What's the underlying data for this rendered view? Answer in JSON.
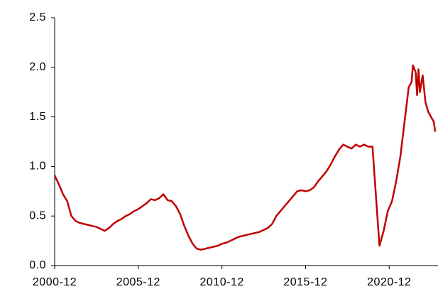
{
  "chart_data": {
    "type": "line",
    "x": [
      "2000-12",
      "2001-03",
      "2001-06",
      "2001-09",
      "2001-12",
      "2002-03",
      "2002-06",
      "2002-09",
      "2002-12",
      "2003-03",
      "2003-06",
      "2003-09",
      "2003-12",
      "2004-03",
      "2004-06",
      "2004-09",
      "2004-12",
      "2005-03",
      "2005-06",
      "2005-09",
      "2005-12",
      "2006-03",
      "2006-06",
      "2006-09",
      "2006-12",
      "2007-03",
      "2007-06",
      "2007-09",
      "2007-12",
      "2008-03",
      "2008-06",
      "2008-09",
      "2008-12",
      "2009-03",
      "2009-06",
      "2009-09",
      "2009-12",
      "2010-03",
      "2010-06",
      "2010-09",
      "2010-12",
      "2011-03",
      "2011-06",
      "2011-09",
      "2011-12",
      "2012-03",
      "2012-06",
      "2012-09",
      "2012-12",
      "2013-03",
      "2013-06",
      "2013-09",
      "2013-12",
      "2014-03",
      "2014-06",
      "2014-09",
      "2014-12",
      "2015-03",
      "2015-06",
      "2015-09",
      "2015-12",
      "2016-03",
      "2016-06",
      "2016-09",
      "2016-12",
      "2017-03",
      "2017-06",
      "2017-09",
      "2017-12",
      "2018-03",
      "2018-06",
      "2018-09",
      "2018-12",
      "2019-03",
      "2019-06",
      "2019-09",
      "2019-12",
      "2020-03",
      "2020-05",
      "2020-08",
      "2020-11",
      "2021-02",
      "2021-05",
      "2021-08",
      "2021-11",
      "2022-02",
      "2022-04",
      "2022-05",
      "2022-07",
      "2022-08",
      "2022-09",
      "2022-10",
      "2022-12",
      "2023-02",
      "2023-04",
      "2023-06",
      "2023-08",
      "2023-09"
    ],
    "series": [
      {
        "color": "#c00000",
        "values": [
          0.91,
          0.82,
          0.72,
          0.65,
          0.5,
          0.45,
          0.43,
          0.42,
          0.41,
          0.4,
          0.39,
          0.37,
          0.35,
          0.38,
          0.42,
          0.45,
          0.47,
          0.5,
          0.52,
          0.55,
          0.57,
          0.6,
          0.63,
          0.67,
          0.66,
          0.68,
          0.72,
          0.66,
          0.65,
          0.6,
          0.52,
          0.4,
          0.3,
          0.22,
          0.17,
          0.16,
          0.17,
          0.18,
          0.19,
          0.2,
          0.22,
          0.23,
          0.25,
          0.27,
          0.29,
          0.3,
          0.31,
          0.32,
          0.33,
          0.34,
          0.36,
          0.38,
          0.42,
          0.5,
          0.55,
          0.6,
          0.65,
          0.7,
          0.75,
          0.76,
          0.75,
          0.76,
          0.79,
          0.85,
          0.9,
          0.95,
          1.02,
          1.1,
          1.17,
          1.22,
          1.2,
          1.18,
          1.22,
          1.2,
          1.22,
          1.2,
          1.2,
          0.6,
          0.2,
          0.35,
          0.55,
          0.65,
          0.85,
          1.1,
          1.45,
          1.8,
          1.85,
          2.02,
          1.95,
          1.72,
          1.98,
          1.75,
          1.92,
          1.65,
          1.55,
          1.5,
          1.45,
          1.35
        ]
      }
    ],
    "xlim": [
      "2000-12",
      "2023-11"
    ],
    "xticks": [
      "2000-12",
      "2005-12",
      "2010-12",
      "2015-12",
      "2020-12"
    ],
    "ylim": [
      0,
      2.5
    ],
    "yticks": [
      {
        "value": 0,
        "label": "0.0"
      },
      {
        "value": 0.5,
        "label": "0.5"
      },
      {
        "value": 1,
        "label": "1.0"
      },
      {
        "value": 1.5,
        "label": "1.5"
      },
      {
        "value": 2,
        "label": "2.0"
      },
      {
        "value": 2.5,
        "label": "2.5"
      }
    ]
  }
}
